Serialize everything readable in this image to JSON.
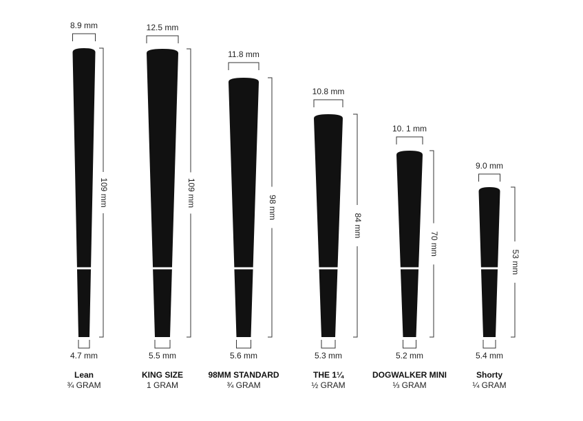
{
  "items": [
    {
      "top": "8.9 mm",
      "length": "109 mm",
      "bottom": "4.7 mm",
      "name": "Lean",
      "weight": "¾ GRAM"
    },
    {
      "top": "12.5 mm",
      "length": "109 mm",
      "bottom": "5.5 mm",
      "name": "KING SIZE",
      "weight": "1 GRAM"
    },
    {
      "top": "11.8 mm",
      "length": "98 mm",
      "bottom": "5.6 mm",
      "name": "98MM STANDARD",
      "weight": "¾ GRAM"
    },
    {
      "top": "10.8 mm",
      "length": "84 mm",
      "bottom": "5.3 mm",
      "name": "THE 1¼",
      "weight": "½ GRAM"
    },
    {
      "top": "10. 1 mm",
      "length": "70 mm",
      "bottom": "5.2 mm",
      "name": "DOGWALKER MINI",
      "weight": "⅓ GRAM"
    },
    {
      "top": "9.0 mm",
      "length": "53 mm",
      "bottom": "5.4 mm",
      "name": "Shorty",
      "weight": "¼ GRAM"
    }
  ]
}
